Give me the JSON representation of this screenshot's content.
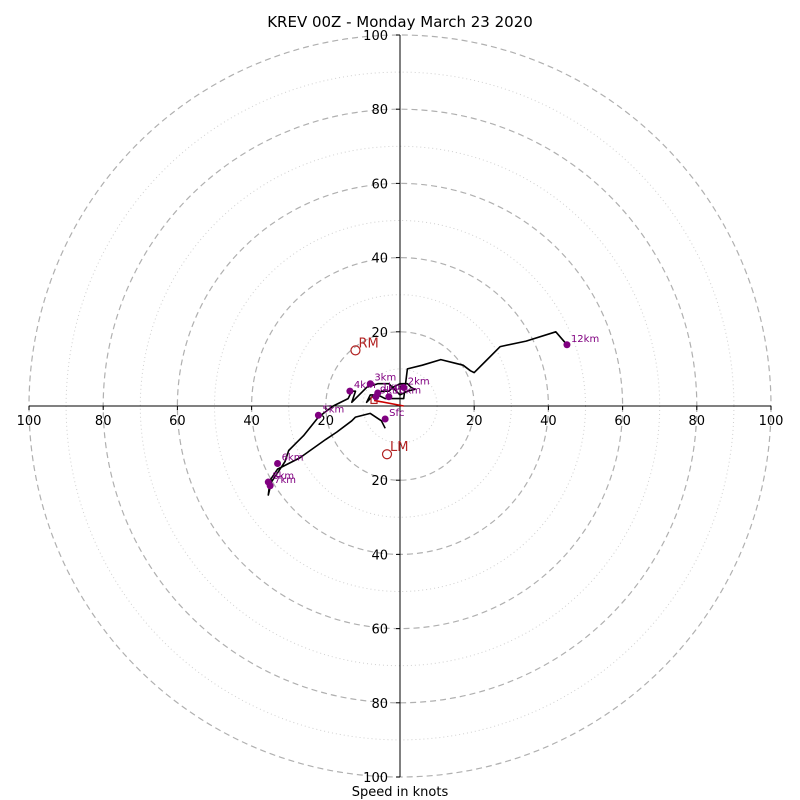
{
  "chart_data": {
    "type": "scatter",
    "title": "KREV 00Z - Monday March 23 2020",
    "xlabel": "Speed in knots",
    "ylabel": "",
    "xlim": [
      -100,
      100
    ],
    "ylim": [
      -100,
      100
    ],
    "ring_values": [
      20,
      40,
      60,
      80,
      100
    ],
    "minor_ring_values": [
      10,
      30,
      50,
      70,
      90
    ],
    "x_tick_labels": [
      "100",
      "80",
      "60",
      "40",
      "20",
      "20",
      "40",
      "60",
      "80",
      "100"
    ],
    "x_tick_values": [
      -100,
      -80,
      -60,
      -40,
      -20,
      20,
      40,
      60,
      80,
      100
    ],
    "y_tick_labels": [
      "100",
      "80",
      "60",
      "40",
      "20",
      "20",
      "40",
      "60",
      "80",
      "100"
    ],
    "y_tick_values": [
      100,
      80,
      60,
      40,
      20,
      -20,
      -40,
      -60,
      -80,
      -100
    ],
    "hodograph_line": {
      "color": "#000000",
      "points": [
        [
          -4,
          -6
        ],
        [
          -5,
          -4
        ],
        [
          -8,
          -2
        ],
        [
          -12,
          -3
        ],
        [
          -13,
          -4
        ],
        [
          -17,
          -7
        ],
        [
          -20,
          -9
        ],
        [
          -27,
          -14
        ],
        [
          -33,
          -17
        ],
        [
          -35,
          -20
        ],
        [
          -35.5,
          -24
        ],
        [
          -35,
          -22
        ],
        [
          -34.5,
          -20
        ],
        [
          -35,
          -21
        ],
        [
          -33,
          -18
        ],
        [
          -31,
          -15
        ],
        [
          -30,
          -12
        ],
        [
          -28,
          -10
        ],
        [
          -26,
          -8
        ],
        [
          -22,
          -3
        ],
        [
          -18,
          0
        ],
        [
          -14,
          2
        ],
        [
          -13,
          4
        ],
        [
          -12,
          4
        ],
        [
          -13,
          1
        ],
        [
          -12,
          2
        ],
        [
          -10,
          4
        ],
        [
          -9,
          5
        ],
        [
          -6,
          6
        ],
        [
          -3,
          6
        ],
        [
          -2,
          5
        ],
        [
          -1,
          4
        ],
        [
          0,
          3
        ],
        [
          2,
          4
        ],
        [
          4,
          4.5
        ],
        [
          3,
          5
        ],
        [
          2,
          6
        ],
        [
          0,
          6
        ],
        [
          -2,
          5
        ],
        [
          -3,
          4
        ],
        [
          -5,
          4
        ],
        [
          -7,
          3
        ],
        [
          -8,
          2
        ],
        [
          -9,
          1
        ],
        [
          -8,
          3
        ],
        [
          -6,
          3
        ],
        [
          -4,
          2
        ],
        [
          -2,
          2
        ],
        [
          1,
          2
        ],
        [
          2,
          10
        ],
        [
          6,
          11
        ],
        [
          11,
          12.5
        ],
        [
          15,
          11.5
        ],
        [
          17,
          11
        ],
        [
          19,
          9.5
        ],
        [
          20,
          9
        ],
        [
          23,
          12
        ],
        [
          27,
          16
        ],
        [
          34,
          17.5
        ],
        [
          42,
          20
        ],
        [
          45,
          16.5
        ]
      ]
    },
    "height_labels": [
      {
        "label": "Sfc",
        "x": -4,
        "y": -3.5
      },
      {
        "label": "1km",
        "x": -6,
        "y": 3.5
      },
      {
        "label": "2km",
        "x": 1,
        "y": 5
      },
      {
        "label": "3km",
        "x": -8,
        "y": 6
      },
      {
        "label": "4km",
        "x": -13.5,
        "y": 4
      },
      {
        "label": "5km",
        "x": -22,
        "y": -2.5
      },
      {
        "label": "6km",
        "x": -33,
        "y": -15.5
      },
      {
        "label": "7km",
        "x": -35,
        "y": -21.5
      },
      {
        "label": "8km",
        "x": -35.5,
        "y": -20.5
      },
      {
        "label": "9km",
        "x": -6.5,
        "y": 2.5
      },
      {
        "label": "10km",
        "x": -3,
        "y": 2.5
      },
      {
        "label": "12km",
        "x": 45,
        "y": 16.5
      }
    ],
    "storm_motions": [
      {
        "label": "RM",
        "x": -12,
        "y": 15,
        "color": "#b22222"
      },
      {
        "label": "LM",
        "x": -3.5,
        "y": -13,
        "color": "#b22222"
      }
    ],
    "mean_wind_marker": {
      "x": -7,
      "y": 1.5,
      "color": "#b22222"
    },
    "shear_vector": {
      "from": [
        -7,
        1.5
      ],
      "to": [
        1,
        0
      ],
      "color": "#cc0000"
    },
    "colors": {
      "ring": "#b0b0b0",
      "axis": "#000000",
      "height_point": "#800080",
      "height_label": "#800080",
      "storm_motion": "#b22222"
    }
  }
}
